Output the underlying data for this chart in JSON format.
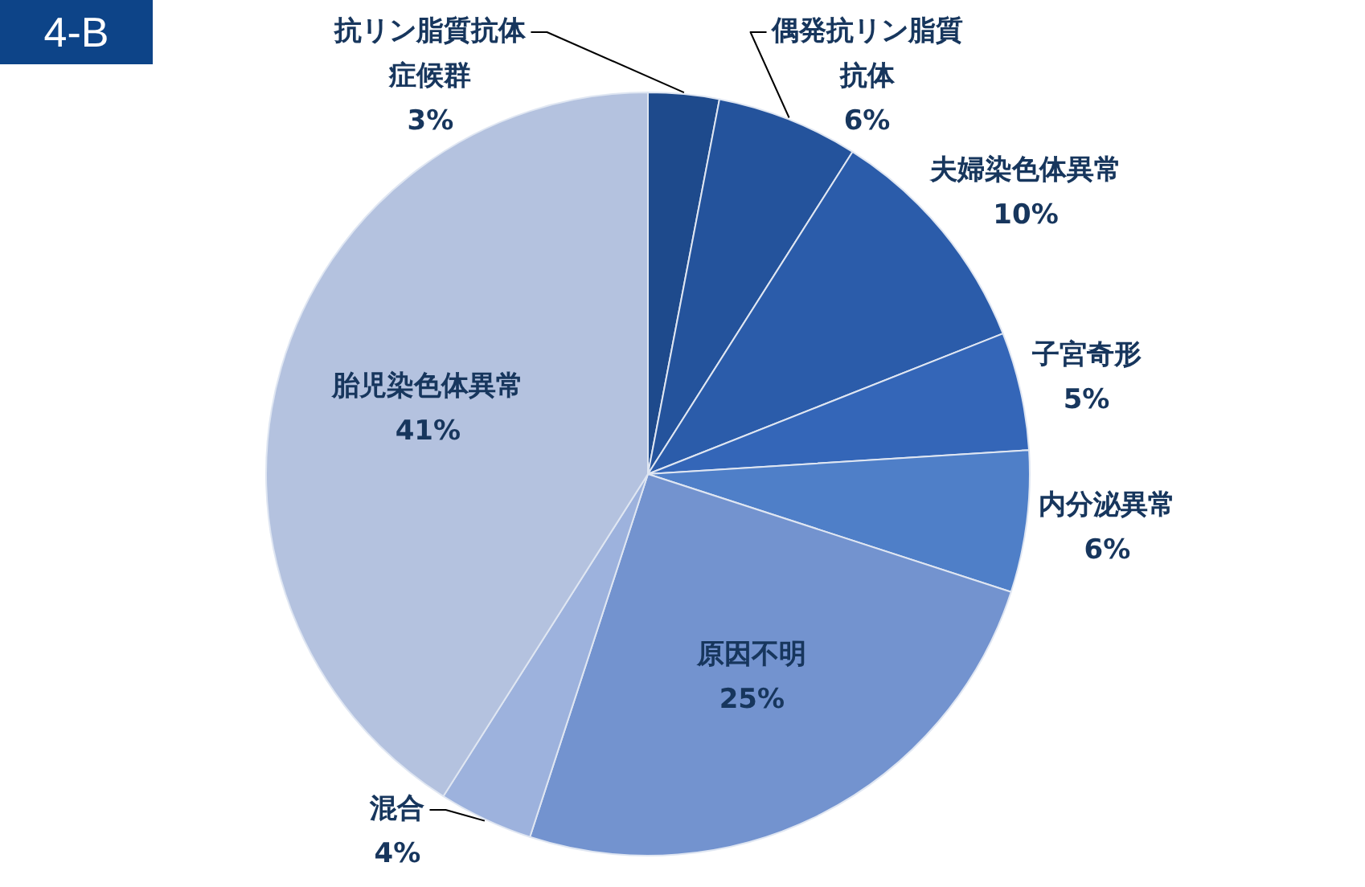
{
  "chart_data": {
    "type": "pie",
    "categories": [
      "抗リン脂質抗体症候群",
      "偶発抗リン脂質抗体",
      "夫婦染色体異常",
      "子宮奇形",
      "内分泌異常",
      "原因不明",
      "混合",
      "胎児染色体異常"
    ],
    "values": [
      3,
      6,
      10,
      5,
      6,
      25,
      4,
      41
    ],
    "colors": [
      "#1e4a8c",
      "#24539c",
      "#2b5caa",
      "#3466b8",
      "#4f7fc8",
      "#7393cf",
      "#9db2dd",
      "#b4c2df"
    ],
    "value_labels": [
      "3%",
      "6%",
      "10%",
      "5%",
      "6%",
      "25%",
      "4%",
      "41%"
    ],
    "annotations": [
      "4-B"
    ]
  }
}
